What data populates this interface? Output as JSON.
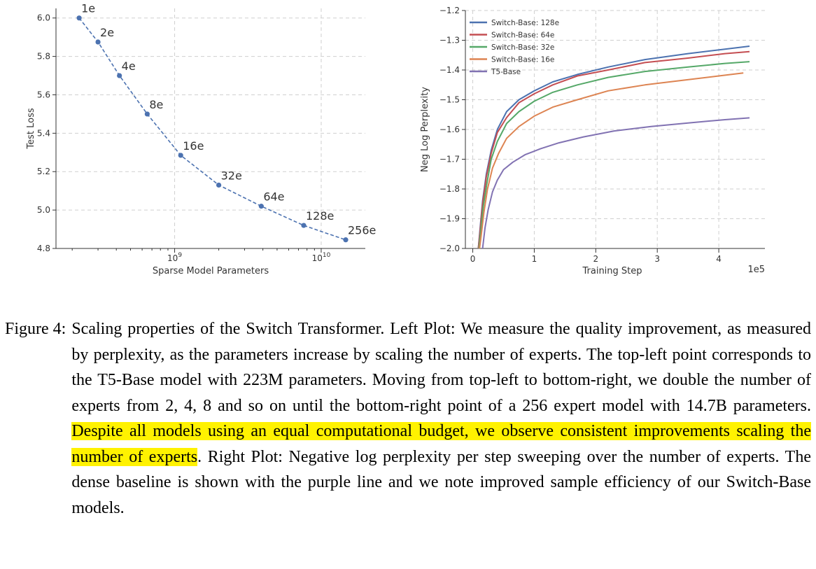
{
  "chart_data": [
    {
      "type": "line",
      "xscale": "log",
      "xlabel": "Sparse Model Parameters",
      "ylabel": "Test Loss",
      "xlim": [
        155000000,
        20000000000
      ],
      "ylim": [
        4.8,
        6.05
      ],
      "yticks": [
        "4.8",
        "5.0",
        "5.2",
        "5.4",
        "5.6",
        "5.8",
        "6.0"
      ],
      "xticks": [
        {
          "base": "10",
          "exp": "9",
          "value": 1000000000
        },
        {
          "base": "10",
          "exp": "10",
          "value": 10000000000
        }
      ],
      "grid": true,
      "line_style": "dashed",
      "color": "#4c72b0",
      "series": [
        {
          "points": [
            {
              "label": "1e",
              "x": 223000000,
              "y": 6.0
            },
            {
              "label": "2e",
              "x": 300000000,
              "y": 5.875
            },
            {
              "label": "4e",
              "x": 420000000,
              "y": 5.7
            },
            {
              "label": "8e",
              "x": 650000000,
              "y": 5.5
            },
            {
              "label": "16e",
              "x": 1100000000,
              "y": 5.285
            },
            {
              "label": "32e",
              "x": 2000000000,
              "y": 5.13
            },
            {
              "label": "64e",
              "x": 3900000000,
              "y": 5.02
            },
            {
              "label": "128e",
              "x": 7600000000,
              "y": 4.92
            },
            {
              "label": "256e",
              "x": 14700000000,
              "y": 4.845
            }
          ]
        }
      ]
    },
    {
      "type": "line",
      "xlabel": "Training Step",
      "xscale_label": "1e5",
      "ylabel": "Neg Log Perplexity",
      "xlim": [
        -0.12,
        4.75
      ],
      "ylim": [
        -2.0,
        -1.2
      ],
      "xticks": [
        "0",
        "1",
        "2",
        "3",
        "4"
      ],
      "yticks": [
        "−2.0",
        "−1.9",
        "−1.8",
        "−1.7",
        "−1.6",
        "−1.5",
        "−1.4",
        "−1.3",
        "−1.2"
      ],
      "grid": true,
      "legend_position": "top-left",
      "series": [
        {
          "name": "Switch-Base: 128e",
          "color": "#4c72b0",
          "x": [
            0.09,
            0.12,
            0.16,
            0.22,
            0.3,
            0.4,
            0.55,
            0.75,
            1.0,
            1.3,
            1.7,
            2.2,
            2.8,
            3.5,
            4.1,
            4.5
          ],
          "y": [
            -2.0,
            -1.93,
            -1.84,
            -1.75,
            -1.67,
            -1.6,
            -1.54,
            -1.5,
            -1.47,
            -1.44,
            -1.415,
            -1.39,
            -1.365,
            -1.345,
            -1.33,
            -1.32
          ]
        },
        {
          "name": "Switch-Base: 64e",
          "color": "#c44e52",
          "x": [
            0.09,
            0.12,
            0.16,
            0.22,
            0.3,
            0.4,
            0.55,
            0.75,
            1.0,
            1.3,
            1.7,
            2.2,
            2.8,
            3.5,
            4.1,
            4.5
          ],
          "y": [
            -2.0,
            -1.94,
            -1.85,
            -1.76,
            -1.68,
            -1.61,
            -1.56,
            -1.51,
            -1.48,
            -1.45,
            -1.42,
            -1.4,
            -1.375,
            -1.36,
            -1.345,
            -1.338
          ]
        },
        {
          "name": "Switch-Base: 32e",
          "color": "#55a868",
          "x": [
            0.1,
            0.13,
            0.17,
            0.23,
            0.3,
            0.4,
            0.55,
            0.75,
            1.0,
            1.3,
            1.7,
            2.2,
            2.8,
            3.5,
            4.1,
            4.5
          ],
          "y": [
            -2.0,
            -1.94,
            -1.86,
            -1.78,
            -1.7,
            -1.64,
            -1.58,
            -1.54,
            -1.505,
            -1.475,
            -1.45,
            -1.425,
            -1.405,
            -1.39,
            -1.378,
            -1.372
          ]
        },
        {
          "name": "Switch-Base: 16e",
          "color": "#dd8452",
          "x": [
            0.11,
            0.14,
            0.18,
            0.24,
            0.32,
            0.42,
            0.55,
            0.75,
            1.0,
            1.3,
            1.7,
            2.2,
            2.8,
            3.4,
            4.0,
            4.4
          ],
          "y": [
            -2.0,
            -1.95,
            -1.88,
            -1.8,
            -1.73,
            -1.68,
            -1.63,
            -1.59,
            -1.555,
            -1.525,
            -1.5,
            -1.47,
            -1.45,
            -1.435,
            -1.42,
            -1.41
          ]
        },
        {
          "name": "T5-Base",
          "color": "#8172b2",
          "x": [
            0.16,
            0.2,
            0.25,
            0.32,
            0.4,
            0.5,
            0.65,
            0.85,
            1.1,
            1.4,
            1.8,
            2.3,
            2.9,
            3.5,
            4.1,
            4.5
          ],
          "y": [
            -2.0,
            -1.93,
            -1.87,
            -1.81,
            -1.77,
            -1.735,
            -1.71,
            -1.685,
            -1.665,
            -1.645,
            -1.625,
            -1.605,
            -1.59,
            -1.578,
            -1.567,
            -1.561
          ]
        }
      ]
    }
  ],
  "caption": {
    "prefix": "Figure 4:",
    "text_before": "Scaling properties of the Switch Transformer. Left Plot: We measure the quality improvement, as measured by perplexity, as the parameters increase by scaling the number of experts. The top-left point corresponds to the T5-Base model with 223M parameters. Moving from top-left to bottom-right, we double the number of experts from 2, 4, 8 and so on until the bottom-right point of a 256 expert model with 14.7B parameters. ",
    "highlighted": "Despite all models using an equal computational budget, we observe consistent improvements scaling the number of experts",
    "text_after": ". Right Plot: Negative log perplexity per step sweeping over the number of experts. The dense baseline is shown with the purple line and we note improved sample efficiency of our Switch-Base models."
  }
}
